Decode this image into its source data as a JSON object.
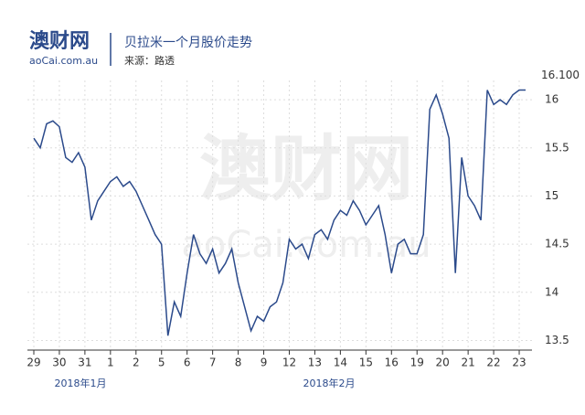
{
  "chart_data": {
    "type": "line",
    "logo": "澳财网",
    "logo_sub": "aoCai.com.au",
    "title": "贝拉米一个月股价走势",
    "subtitle": "来源：路透",
    "watermark": "澳财网",
    "watermark_sub": "aoCai.com.au",
    "categories": [
      "29",
      "30",
      "31",
      "1",
      "2",
      "5",
      "6",
      "7",
      "8",
      "9",
      "12",
      "13",
      "14",
      "15",
      "16",
      "19",
      "20",
      "21",
      "22",
      "23"
    ],
    "month_labels": [
      "2018年1月",
      "2018年2月"
    ],
    "xlim": [
      -0.25,
      19.5
    ],
    "ylim": [
      13.4,
      16.2
    ],
    "yticks": [
      13.5,
      14.0,
      14.5,
      15.0,
      15.5,
      16.0
    ],
    "grid": true,
    "last_label": {
      "value": 16.1,
      "label": "16.100"
    },
    "series": [
      {
        "color": "#2b4a8b",
        "x": [
          0,
          0.25,
          0.5,
          0.75,
          1,
          1.25,
          1.5,
          1.75,
          2,
          2.25,
          2.5,
          2.75,
          3,
          3.25,
          3.5,
          3.75,
          4,
          4.25,
          4.5,
          4.75,
          5,
          5.25,
          5.5,
          5.75,
          6,
          6.25,
          6.5,
          6.75,
          7,
          7.25,
          7.5,
          7.75,
          8,
          8.25,
          8.5,
          8.75,
          9,
          9.25,
          9.5,
          9.75,
          10,
          10.25,
          10.5,
          10.75,
          11,
          11.25,
          11.5,
          11.75,
          12,
          12.25,
          12.5,
          12.75,
          13,
          13.25,
          13.5,
          13.75,
          14,
          14.25,
          14.5,
          14.75,
          15,
          15.25,
          15.5,
          15.75,
          16,
          16.25,
          16.5,
          16.75,
          17,
          17.25,
          17.5,
          17.75,
          18,
          18.25,
          18.5,
          18.75,
          19,
          19.25
        ],
        "values": [
          15.6,
          15.5,
          15.75,
          15.78,
          15.72,
          15.4,
          15.35,
          15.45,
          15.3,
          14.75,
          14.95,
          15.05,
          15.15,
          15.2,
          15.1,
          15.15,
          15.05,
          14.9,
          14.75,
          14.6,
          14.5,
          13.55,
          13.9,
          13.75,
          14.2,
          14.6,
          14.4,
          14.3,
          14.45,
          14.2,
          14.3,
          14.45,
          14.1,
          13.85,
          13.6,
          13.75,
          13.7,
          13.85,
          13.9,
          14.1,
          14.55,
          14.45,
          14.5,
          14.35,
          14.6,
          14.65,
          14.55,
          14.75,
          14.85,
          14.8,
          14.95,
          14.85,
          14.7,
          14.8,
          14.9,
          14.6,
          14.2,
          14.5,
          14.55,
          14.4,
          14.4,
          14.6,
          15.9,
          16.05,
          15.85,
          15.6,
          14.2,
          15.4,
          15.0,
          14.9,
          14.75,
          16.1,
          15.95,
          16.0,
          15.95,
          16.05,
          16.1,
          16.1
        ]
      }
    ]
  }
}
